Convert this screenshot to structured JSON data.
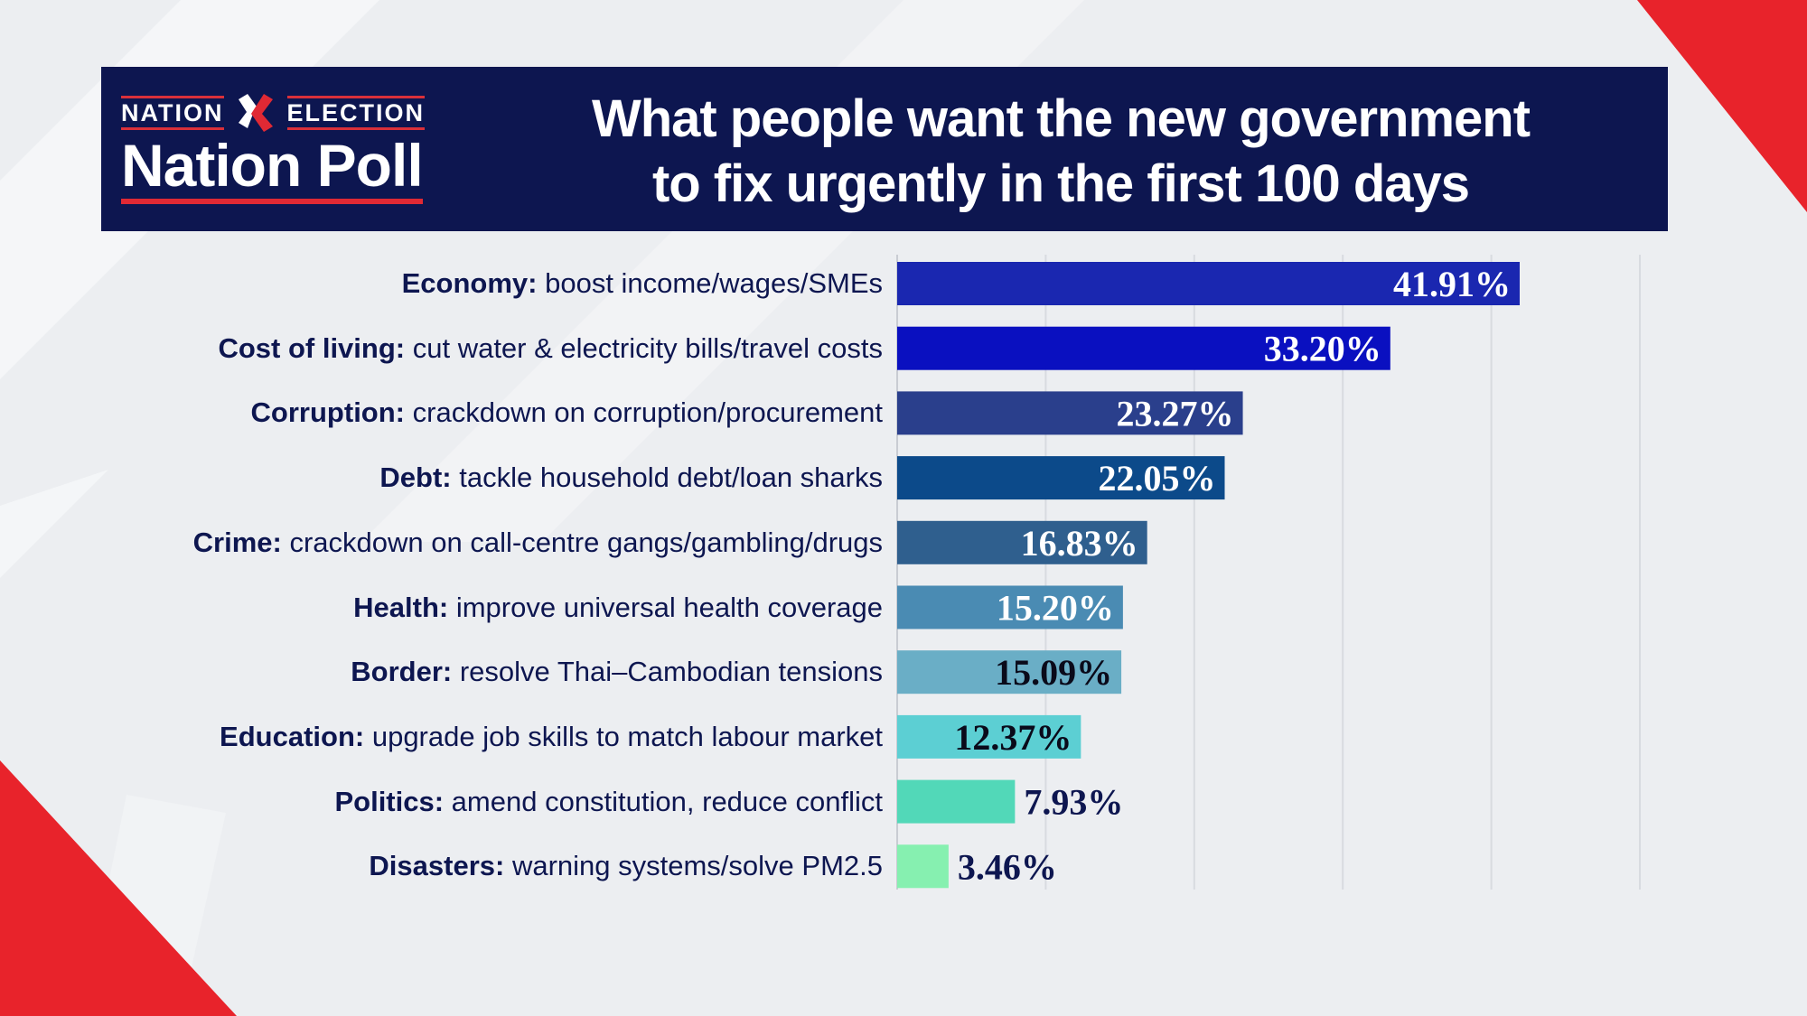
{
  "header": {
    "logo_left": "NATION",
    "logo_right": "ELECTION",
    "logo_main": "Nation Poll",
    "title_line1": "What people want the new government",
    "title_line2": "to fix urgently in the first 100 days"
  },
  "colors": {
    "header_bg": "#0d1650",
    "accent_red": "#e02934",
    "background": "#eceef1"
  },
  "chart_data": {
    "type": "bar",
    "orientation": "horizontal",
    "categories": [
      {
        "topic": "Economy:",
        "detail": "boost income/wages/SMEs"
      },
      {
        "topic": "Cost of living:",
        "detail": "cut water & electricity bills/travel costs"
      },
      {
        "topic": "Corruption:",
        "detail": "crackdown on corruption/procurement"
      },
      {
        "topic": "Debt:",
        "detail": "tackle household debt/loan sharks"
      },
      {
        "topic": "Crime:",
        "detail": "crackdown on call-centre gangs/gambling/drugs"
      },
      {
        "topic": "Health:",
        "detail": "improve universal health coverage"
      },
      {
        "topic": "Border:",
        "detail": "resolve Thai–Cambodian tensions"
      },
      {
        "topic": "Education:",
        "detail": "upgrade job skills to match labour market"
      },
      {
        "topic": "Politics:",
        "detail": "amend constitution, reduce conflict"
      },
      {
        "topic": "Disasters:",
        "detail": "warning systems/solve PM2.5"
      }
    ],
    "values": [
      41.91,
      33.2,
      23.27,
      22.05,
      16.83,
      15.2,
      15.09,
      12.37,
      7.93,
      3.46
    ],
    "value_labels": [
      "41.91%",
      "33.20%",
      "23.27%",
      "22.05%",
      "16.83%",
      "15.20%",
      "15.09%",
      "12.37%",
      "7.93%",
      "3.46%"
    ],
    "bar_colors": [
      "#1a27b0",
      "#0a10c0",
      "#2a3f8c",
      "#0c4a8a",
      "#2f5f8e",
      "#4a8bb3",
      "#6aaec6",
      "#5ccfd3",
      "#52d8b8",
      "#86f0b0"
    ],
    "label_colors": [
      "#ffffff",
      "#ffffff",
      "#ffffff",
      "#ffffff",
      "#ffffff",
      "#ffffff",
      "#0a0a1a",
      "#0a0a1a",
      "#0d1650",
      "#0d1650"
    ],
    "xlim": [
      0,
      50
    ],
    "grid": true,
    "unit": "%"
  }
}
